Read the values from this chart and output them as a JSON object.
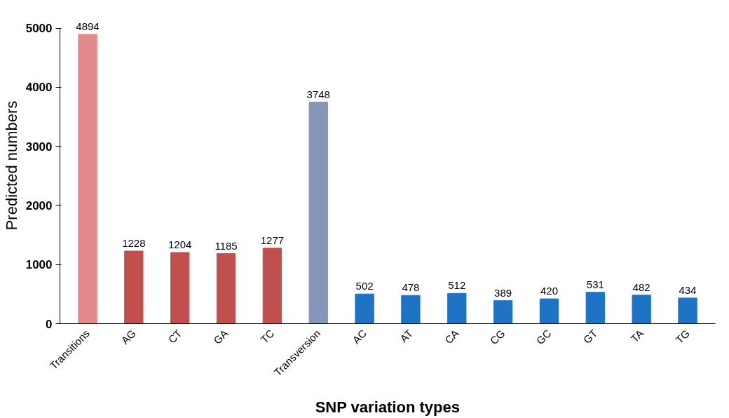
{
  "chart_data": {
    "type": "bar",
    "xlabel": "SNP variation types",
    "ylabel": "Predicted numbers",
    "categories": [
      "Transitions",
      "AG",
      "CT",
      "GA",
      "TC",
      "Transversion",
      "AC",
      "AT",
      "CA",
      "CG",
      "GC",
      "GT",
      "TA",
      "TG"
    ],
    "values": [
      4894,
      1228,
      1204,
      1185,
      1277,
      3748,
      502,
      478,
      512,
      389,
      420,
      531,
      482,
      434
    ],
    "colors": [
      "#e58a8c",
      "#c0504d",
      "#c0504d",
      "#c0504d",
      "#c0504d",
      "#8596b8",
      "#1f73c4",
      "#1f73c4",
      "#1f73c4",
      "#1f73c4",
      "#1f73c4",
      "#1f73c4",
      "#1f73c4",
      "#1f73c4"
    ],
    "ylim": [
      0,
      5000
    ],
    "yticks": [
      0,
      1000,
      2000,
      3000,
      4000,
      5000
    ],
    "grid": false,
    "data_labels": true
  }
}
